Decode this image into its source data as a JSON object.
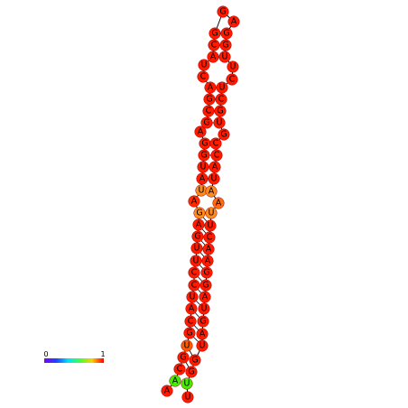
{
  "nodes": [
    {
      "label": "A",
      "color": "#ff1a00"
    },
    {
      "label": "A",
      "color": "#44ee00"
    },
    {
      "label": "C",
      "color": "#ff1a00"
    },
    {
      "label": "G",
      "color": "#ff1a00"
    },
    {
      "label": "U",
      "color": "#ff5a00"
    },
    {
      "label": "G",
      "color": "#ff1a00"
    },
    {
      "label": "C",
      "color": "#ff1a00"
    },
    {
      "label": "A",
      "color": "#ff1a00"
    },
    {
      "label": "U",
      "color": "#ff1a00"
    },
    {
      "label": "C",
      "color": "#ff1a00"
    },
    {
      "label": "C",
      "color": "#ff1a00"
    },
    {
      "label": "U",
      "color": "#ff1a00"
    },
    {
      "label": "U",
      "color": "#ff1a00"
    },
    {
      "label": "G",
      "color": "#ff1a00"
    },
    {
      "label": "A",
      "color": "#ff1a00"
    },
    {
      "label": "G",
      "color": "#ff8a20"
    },
    {
      "label": "A",
      "color": "#ff2a00"
    },
    {
      "label": "U",
      "color": "#ff8a20"
    },
    {
      "label": "A",
      "color": "#ff1a00"
    },
    {
      "label": "U",
      "color": "#ff1a00"
    },
    {
      "label": "G",
      "color": "#ff1a00"
    },
    {
      "label": "G",
      "color": "#ff1a00"
    },
    {
      "label": "A",
      "color": "#ff1a00"
    },
    {
      "label": "G",
      "color": "#ff1a00"
    },
    {
      "label": "C",
      "color": "#ff1a00"
    },
    {
      "label": "G",
      "color": "#ff1a00"
    },
    {
      "label": "A",
      "color": "#ff1a00"
    },
    {
      "label": "C",
      "color": "#ff1a00"
    },
    {
      "label": "U",
      "color": "#ff1a00"
    },
    {
      "label": "A",
      "color": "#ff1a00"
    },
    {
      "label": "C",
      "color": "#ff1a00"
    },
    {
      "label": "G",
      "color": "#ff1a00"
    },
    {
      "label": "G",
      "color": "#ff1a00"
    },
    {
      "label": "A",
      "color": "#ff1a00"
    },
    {
      "label": "G",
      "color": "#ff1a00"
    },
    {
      "label": "G",
      "color": "#ff1a00"
    },
    {
      "label": "U",
      "color": "#ff1a00"
    },
    {
      "label": "U",
      "color": "#ff1a00"
    },
    {
      "label": "C",
      "color": "#ff1a00"
    },
    {
      "label": "U",
      "color": "#ff1a00"
    },
    {
      "label": "C",
      "color": "#ff1a00"
    },
    {
      "label": "G",
      "color": "#ff1a00"
    },
    {
      "label": "U",
      "color": "#ff1a00"
    },
    {
      "label": "G",
      "color": "#ff1a00"
    },
    {
      "label": "C",
      "color": "#ff1a00"
    },
    {
      "label": "C",
      "color": "#ff1a00"
    },
    {
      "label": "A",
      "color": "#ff1a00"
    },
    {
      "label": "U",
      "color": "#ff1a00"
    },
    {
      "label": "A",
      "color": "#ff8a20"
    },
    {
      "label": "A",
      "color": "#ff6a10"
    },
    {
      "label": "U",
      "color": "#ff8a20"
    },
    {
      "label": "U",
      "color": "#ff1a00"
    },
    {
      "label": "C",
      "color": "#ff1a00"
    },
    {
      "label": "A",
      "color": "#ff1a00"
    },
    {
      "label": "A",
      "color": "#ff1a00"
    },
    {
      "label": "G",
      "color": "#ff1a00"
    },
    {
      "label": "G",
      "color": "#ff1a00"
    },
    {
      "label": "A",
      "color": "#ff1a00"
    },
    {
      "label": "U",
      "color": "#ff1a00"
    },
    {
      "label": "G",
      "color": "#ff1a00"
    },
    {
      "label": "A",
      "color": "#ff1a00"
    },
    {
      "label": "U",
      "color": "#ff1a00"
    },
    {
      "label": "G",
      "color": "#ff1a00"
    },
    {
      "label": "G",
      "color": "#ff1a00"
    },
    {
      "label": "U",
      "color": "#44ee00"
    },
    {
      "label": "U",
      "color": "#ff1a00"
    }
  ],
  "colorbar": {
    "min_label": "0",
    "max_label": "1"
  }
}
